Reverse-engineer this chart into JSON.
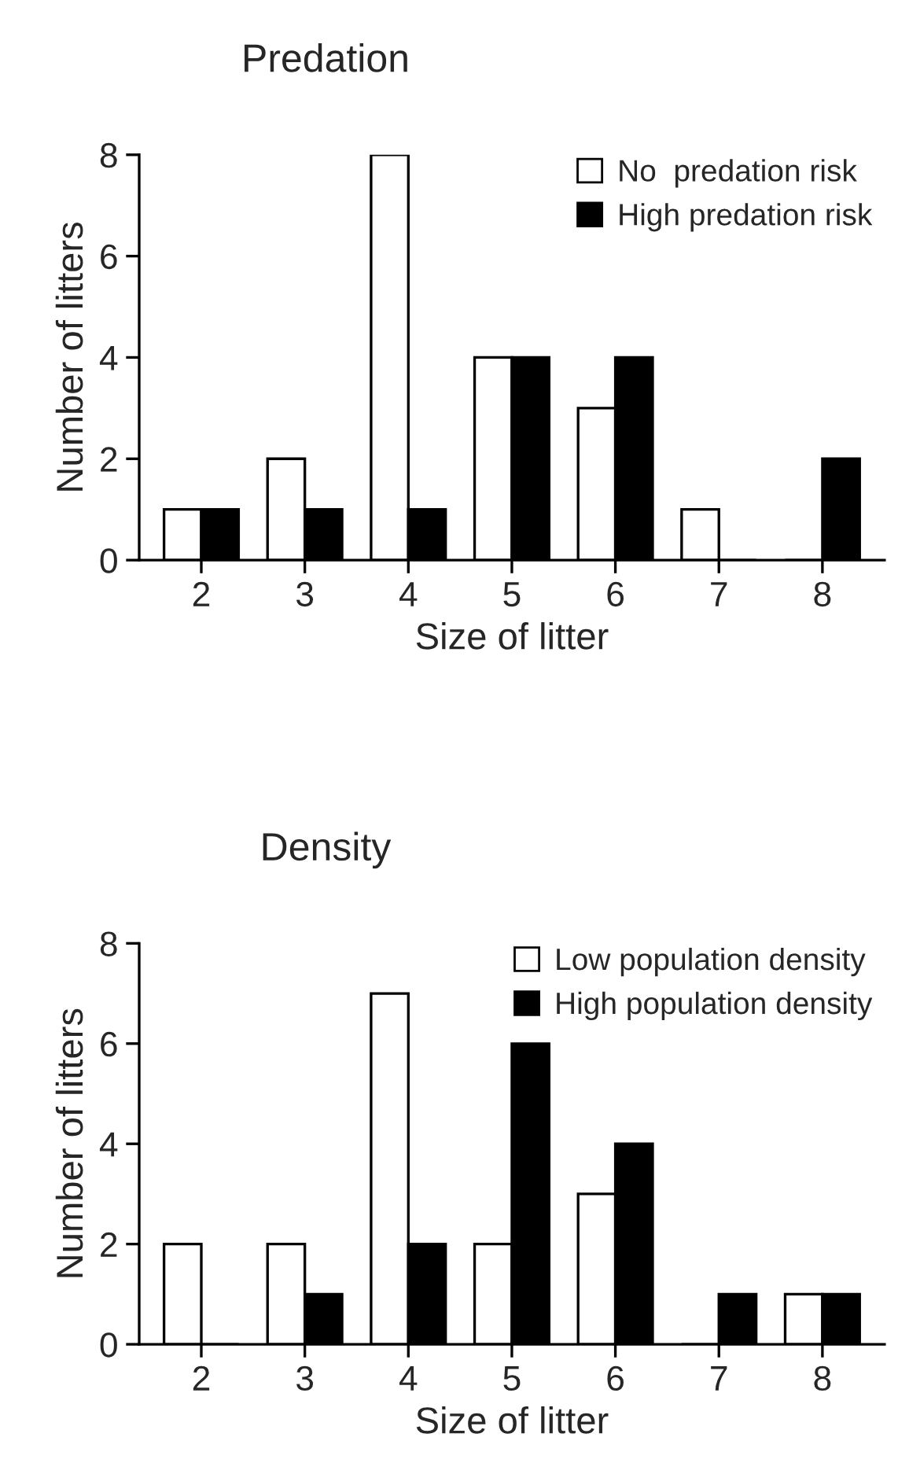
{
  "chart_data": [
    {
      "type": "bar",
      "title": "Predation",
      "xlabel": "Size of litter",
      "ylabel": "Number of litters",
      "categories": [
        "2",
        "3",
        "4",
        "5",
        "6",
        "7",
        "8"
      ],
      "series": [
        {
          "name": "No  predation risk",
          "color": "#ffffff",
          "values": [
            1,
            2,
            8,
            4,
            3,
            1,
            0
          ]
        },
        {
          "name": "High predation risk",
          "color": "#000000",
          "values": [
            1,
            1,
            1,
            4,
            4,
            0,
            2
          ]
        }
      ],
      "ylim": [
        0,
        8
      ],
      "yticks": [
        0,
        2,
        4,
        6,
        8
      ],
      "legend": "top right",
      "grid": false
    },
    {
      "type": "bar",
      "title": "Density",
      "xlabel": "Size of litter",
      "ylabel": "Number of litters",
      "categories": [
        "2",
        "3",
        "4",
        "5",
        "6",
        "7",
        "8"
      ],
      "series": [
        {
          "name": "Low population density",
          "color": "#ffffff",
          "values": [
            2,
            2,
            7,
            2,
            3,
            0,
            1
          ]
        },
        {
          "name": "High population density",
          "color": "#000000",
          "values": [
            0,
            1,
            2,
            6,
            4,
            1,
            1
          ]
        }
      ],
      "ylim": [
        0,
        8
      ],
      "yticks": [
        0,
        2,
        4,
        6,
        8
      ],
      "legend": "top right",
      "grid": false
    }
  ]
}
